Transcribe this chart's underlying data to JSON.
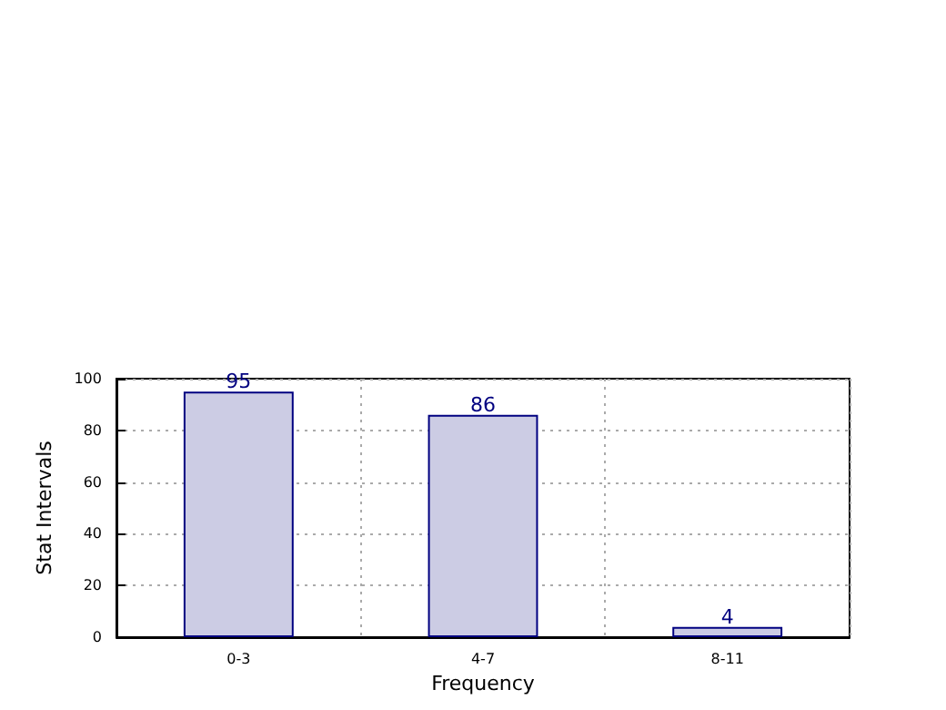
{
  "chart_data": {
    "type": "bar",
    "xlabel": "Frequency",
    "ylabel": "Stat Intervals",
    "categories": [
      "0-3",
      "4-7",
      "8-11"
    ],
    "values": [
      95,
      86,
      4
    ],
    "color": "#ccccE4",
    "ylim": [
      0,
      100
    ],
    "yticks": [
      0,
      20,
      40,
      60,
      80,
      100
    ],
    "grid": true,
    "data_labels": true
  }
}
